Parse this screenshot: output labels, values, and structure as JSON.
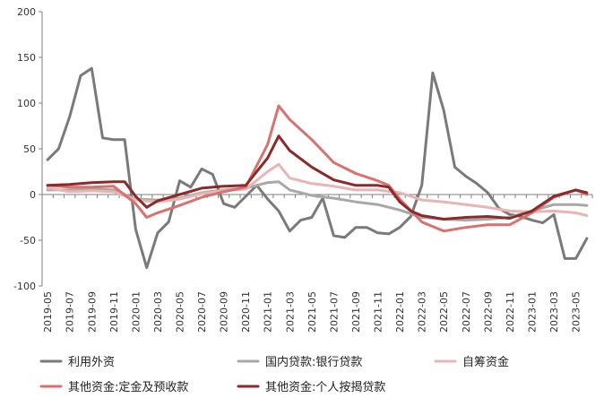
{
  "chart_data": {
    "type": "line",
    "title": "",
    "xlabel": "",
    "ylabel": "",
    "ylim": [
      -100,
      200
    ],
    "yticks": [
      -100,
      -50,
      0,
      50,
      100,
      150,
      200
    ],
    "x_tick_labels": [
      "2019-05",
      "2019-07",
      "2019-09",
      "2019-11",
      "2020-01",
      "2020-03",
      "2020-05",
      "2020-07",
      "2020-09",
      "2020-11",
      "2021-01",
      "2021-03",
      "2021-05",
      "2021-07",
      "2021-09",
      "2021-11",
      "2022-01",
      "2022-03",
      "2022-05",
      "2022-07",
      "2022-09",
      "2022-11",
      "2023-01",
      "2023-03",
      "2023-05"
    ],
    "legend_position": "bottom",
    "series": [
      {
        "name": "利用外资",
        "color": "#7a7a7a",
        "x": [
          "2019-05",
          "2019-06",
          "2019-07",
          "2019-08",
          "2019-09",
          "2019-10",
          "2019-11",
          "2019-12",
          "2020-01",
          "2020-02",
          "2020-03",
          "2020-04",
          "2020-05",
          "2020-06",
          "2020-07",
          "2020-08",
          "2020-09",
          "2020-10",
          "2020-11",
          "2020-12",
          "2021-01",
          "2021-02",
          "2021-03",
          "2021-04",
          "2021-05",
          "2021-06",
          "2021-07",
          "2021-08",
          "2021-09",
          "2021-10",
          "2021-11",
          "2021-12",
          "2022-01",
          "2022-02",
          "2022-03",
          "2022-04",
          "2022-05",
          "2022-06",
          "2022-07",
          "2022-08",
          "2022-09",
          "2022-10",
          "2022-11",
          "2022-12",
          "2023-01",
          "2023-02",
          "2023-03",
          "2023-04",
          "2023-05",
          "2023-06"
        ],
        "values": [
          38,
          50,
          85,
          130,
          138,
          62,
          60,
          60,
          -38,
          -80,
          -42,
          -30,
          15,
          8,
          28,
          22,
          -10,
          -14,
          -2,
          10,
          -5,
          -18,
          -40,
          -28,
          -25,
          -4,
          -45,
          -47,
          -36,
          -36,
          -42,
          -43,
          -36,
          -24,
          10,
          133,
          92,
          30,
          20,
          12,
          2,
          -15,
          -22,
          -24,
          -28,
          -31,
          -22,
          -70,
          -70,
          -48
        ]
      },
      {
        "name": "国内贷款:银行贷款",
        "color": "#a8a8a8",
        "x": [
          "2019-05",
          "2019-07",
          "2019-09",
          "2019-11",
          "2020-01",
          "2020-03",
          "2020-05",
          "2020-07",
          "2020-09",
          "2020-11",
          "2021-01",
          "2021-02",
          "2021-03",
          "2021-05",
          "2021-07",
          "2021-09",
          "2021-11",
          "2022-01",
          "2022-03",
          "2022-05",
          "2022-07",
          "2022-09",
          "2022-11",
          "2023-01",
          "2023-03",
          "2023-05",
          "2023-06"
        ],
        "values": [
          5,
          5,
          6,
          5,
          -5,
          -6,
          -4,
          2,
          5,
          7,
          13,
          14,
          5,
          -1,
          -4,
          -8,
          -11,
          -17,
          -25,
          -27,
          -28,
          -27,
          -25,
          -18,
          -11,
          -11,
          -12
        ]
      },
      {
        "name": "自筹资金",
        "color": "#e8b4b4",
        "x": [
          "2019-05",
          "2019-07",
          "2019-09",
          "2019-11",
          "2020-01",
          "2020-03",
          "2020-05",
          "2020-07",
          "2020-09",
          "2020-11",
          "2021-01",
          "2021-02",
          "2021-03",
          "2021-05",
          "2021-07",
          "2021-09",
          "2021-11",
          "2022-01",
          "2022-03",
          "2022-05",
          "2022-07",
          "2022-09",
          "2022-11",
          "2023-01",
          "2023-03",
          "2023-05",
          "2023-06"
        ],
        "values": [
          7,
          3,
          4,
          3,
          -6,
          -8,
          -5,
          1,
          4,
          6,
          25,
          33,
          18,
          12,
          9,
          5,
          5,
          2,
          -6,
          -8,
          -11,
          -14,
          -18,
          -19,
          -18,
          -20,
          -23
        ]
      },
      {
        "name": "其他资金:定金及预收款",
        "color": "#d9716f",
        "x": [
          "2019-05",
          "2019-07",
          "2019-09",
          "2019-11",
          "2020-01",
          "2020-02",
          "2020-03",
          "2020-05",
          "2020-07",
          "2020-09",
          "2020-11",
          "2021-01",
          "2021-02",
          "2021-03",
          "2021-05",
          "2021-07",
          "2021-09",
          "2021-11",
          "2021-12",
          "2022-01",
          "2022-03",
          "2022-05",
          "2022-07",
          "2022-09",
          "2022-11",
          "2023-01",
          "2023-03",
          "2023-05",
          "2023-06"
        ],
        "values": [
          10,
          8,
          8,
          9,
          -10,
          -25,
          -20,
          -12,
          -3,
          3,
          8,
          55,
          97,
          82,
          60,
          35,
          23,
          15,
          10,
          -5,
          -30,
          -40,
          -36,
          -33,
          -33,
          -20,
          -3,
          5,
          0
        ]
      },
      {
        "name": "其他资金:个人按揭贷款",
        "color": "#8b2a2a",
        "x": [
          "2019-05",
          "2019-07",
          "2019-09",
          "2019-11",
          "2019-12",
          "2020-01",
          "2020-02",
          "2020-03",
          "2020-05",
          "2020-07",
          "2020-09",
          "2020-11",
          "2021-01",
          "2021-02",
          "2021-03",
          "2021-05",
          "2021-07",
          "2021-09",
          "2021-11",
          "2021-12",
          "2022-01",
          "2022-02",
          "2022-03",
          "2022-05",
          "2022-07",
          "2022-09",
          "2022-11",
          "2023-01",
          "2023-03",
          "2023-05",
          "2023-06"
        ],
        "values": [
          10,
          11,
          13,
          14,
          14,
          -2,
          -14,
          -7,
          0,
          7,
          9,
          10,
          40,
          64,
          48,
          30,
          16,
          10,
          10,
          8,
          -8,
          -18,
          -23,
          -27,
          -25,
          -24,
          -26,
          -18,
          -2,
          5,
          2
        ]
      }
    ]
  }
}
